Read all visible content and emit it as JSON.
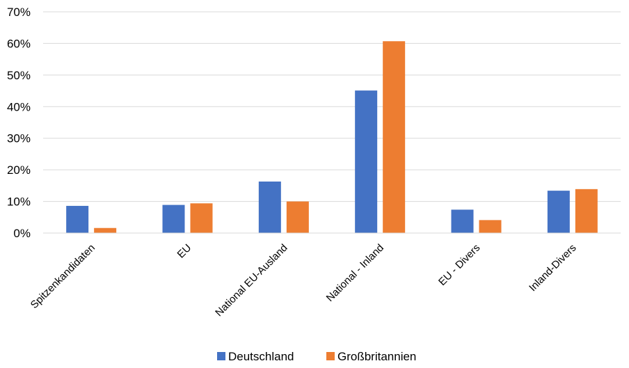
{
  "chart_data": {
    "type": "bar",
    "categories": [
      "Spitzenkandidaten",
      "EU",
      "National EU-Ausland",
      "National - Inland",
      "EU - Divers",
      "Inland-Divers"
    ],
    "series": [
      {
        "name": "Deutschland",
        "color": "#4472C4",
        "values": [
          8.6,
          8.9,
          16.3,
          45.1,
          7.4,
          13.4
        ]
      },
      {
        "name": "Großbritannien",
        "color": "#ED7D31",
        "values": [
          1.6,
          9.4,
          10.0,
          60.7,
          4.1,
          13.9
        ]
      }
    ],
    "ylim": [
      0,
      70
    ],
    "yticks": [
      0,
      10,
      20,
      30,
      40,
      50,
      60,
      70
    ],
    "ytick_labels": [
      "0%",
      "10%",
      "20%",
      "30%",
      "40%",
      "50%",
      "60%",
      "70%"
    ],
    "grid": true,
    "legend": "bottom-center",
    "xlabel": "",
    "ylabel": "",
    "title": ""
  }
}
